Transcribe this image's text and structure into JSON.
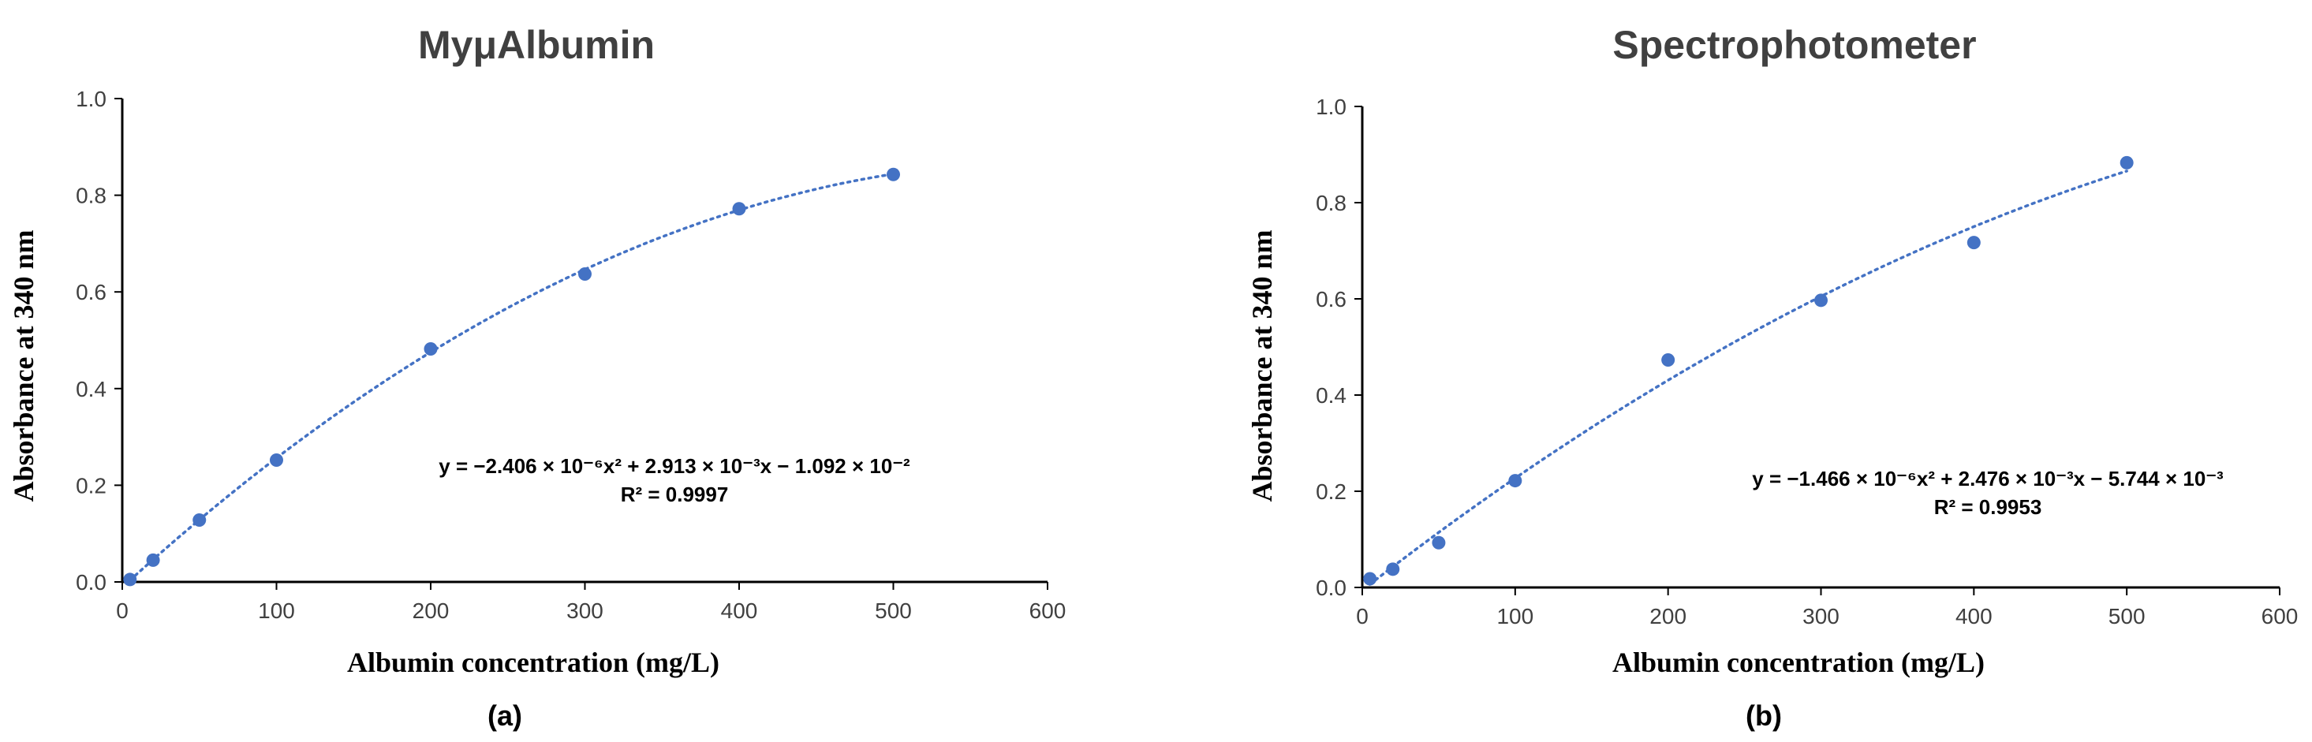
{
  "chart_data": [
    {
      "type": "scatter",
      "title": "MyμAlbumin",
      "xlabel": "Albumin concentration (mg/L)",
      "ylabel": "Absorbance at 340 nm",
      "panel_label": "(a)",
      "xlim": [
        0,
        600
      ],
      "ylim": [
        0,
        1.0
      ],
      "xticks": [
        "0",
        "100",
        "200",
        "300",
        "400",
        "500",
        "600"
      ],
      "yticks": [
        "0.0",
        "0.2",
        "0.4",
        "0.6",
        "0.8",
        "1.0"
      ],
      "series": [
        {
          "x": [
            5,
            20,
            50,
            100,
            200,
            300,
            400,
            500
          ],
          "y": [
            0.005,
            0.045,
            0.128,
            0.252,
            0.482,
            0.637,
            0.772,
            0.843
          ]
        }
      ],
      "trendline": {
        "type": "polynomial",
        "coefficients": [
          -2.406e-06,
          0.002913,
          -0.01092
        ],
        "equation": "y = −2.406 × 10⁻⁶x² + 2.913 × 10⁻³x − 1.092 × 10⁻²",
        "r_squared": "R² = 0.9997"
      },
      "grid": false,
      "color": "#4472C4"
    },
    {
      "type": "scatter",
      "title": "Spectrophotometer",
      "xlabel": "Albumin concentration (mg/L)",
      "ylabel": "Absorbance at 340 nm",
      "panel_label": "(b)",
      "xlim": [
        0,
        600
      ],
      "ylim": [
        0,
        1.0
      ],
      "xticks": [
        "0",
        "100",
        "200",
        "300",
        "400",
        "500",
        "600"
      ],
      "yticks": [
        "0.0",
        "0.2",
        "0.4",
        "0.6",
        "0.8",
        "1.0"
      ],
      "series": [
        {
          "x": [
            5,
            20,
            50,
            100,
            200,
            300,
            400,
            500
          ],
          "y": [
            0.018,
            0.038,
            0.093,
            0.222,
            0.473,
            0.597,
            0.717,
            0.883
          ]
        }
      ],
      "trendline": {
        "type": "polynomial",
        "coefficients": [
          -1.466e-06,
          0.002476,
          -0.005744
        ],
        "equation": "y = −1.466 × 10⁻⁶x² + 2.476 × 10⁻³x − 5.744 × 10⁻³",
        "r_squared": "R² = 0.9953"
      },
      "grid": false,
      "color": "#4472C4"
    }
  ]
}
